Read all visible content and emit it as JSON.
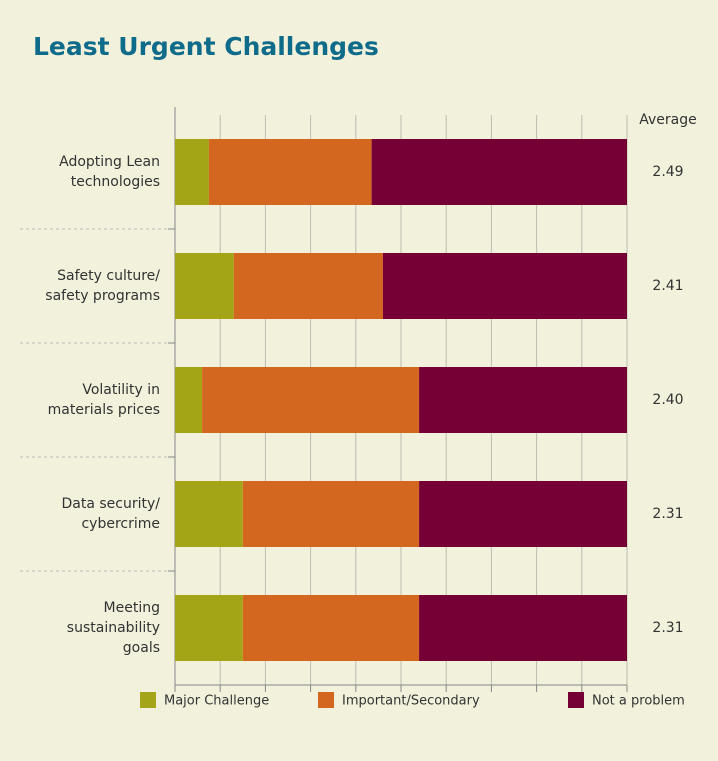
{
  "chart_data": {
    "type": "stacked_barh",
    "title": "Least Urgent Challenges",
    "categories": [
      "Adopting Lean\ntechnologies",
      "Safety culture/\nsafety programs",
      "Volatility in\nmaterials prices",
      "Data security/\ncybercrime",
      "Meeting\nsustainability\ngoals"
    ],
    "series": [
      {
        "name": "Major Challenge",
        "color": "#a3a516",
        "values": [
          7.5,
          13,
          6,
          15,
          15
        ]
      },
      {
        "name": "Important/Secondary",
        "color": "#d4671f",
        "values": [
          36,
          33,
          48,
          39,
          39
        ]
      },
      {
        "name": "Not a problem",
        "color": "#760036",
        "values": [
          56.5,
          54,
          46,
          46,
          46
        ]
      }
    ],
    "average_header": "Average",
    "averages": [
      "2.49",
      "2.41",
      "2.40",
      "2.31",
      "2.31"
    ],
    "xlim": [
      0,
      100
    ],
    "xticks": [
      0,
      10,
      20,
      30,
      40,
      50,
      60,
      70,
      80,
      90,
      100
    ],
    "grid": true
  }
}
